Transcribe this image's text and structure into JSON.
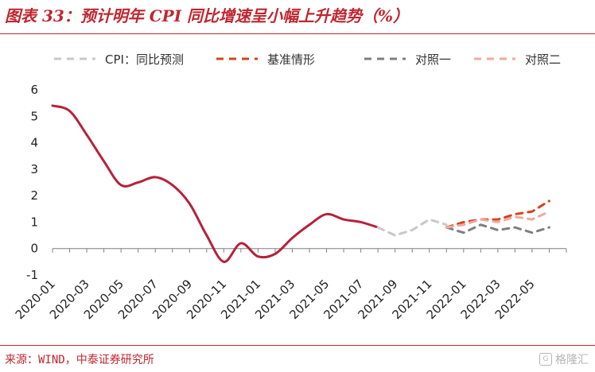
{
  "title": "图表 33：预计明年 CPI 同比增速呈小幅上升趋势（%）",
  "source": "来源：WIND，中泰证券研究所",
  "watermark": "格隆汇",
  "chart_data": {
    "type": "line",
    "title": "图表 33：预计明年 CPI 同比增速呈小幅上升趋势（%）",
    "xlabel": "",
    "ylabel": "",
    "ylim": [
      -1,
      6
    ],
    "yticks": [
      -1,
      0,
      1,
      2,
      3,
      4,
      5,
      6
    ],
    "grid": false,
    "legend_position": "top",
    "x_tick_labels": [
      "2020-01",
      "2020-03",
      "2020-05",
      "2020-07",
      "2020-09",
      "2020-11",
      "2021-01",
      "2021-03",
      "2021-05",
      "2021-07",
      "2021-09",
      "2021-11",
      "2022-01",
      "2022-03",
      "2022-05"
    ],
    "series": [
      {
        "name": "CPI",
        "style": "solid",
        "color": "#b5223a",
        "x": [
          "2020-01",
          "2020-02",
          "2020-03",
          "2020-04",
          "2020-05",
          "2020-06",
          "2020-07",
          "2020-08",
          "2020-09",
          "2020-10",
          "2020-11",
          "2020-12",
          "2021-01",
          "2021-02",
          "2021-03",
          "2021-04",
          "2021-05",
          "2021-06",
          "2021-07",
          "2021-08"
        ],
        "y": [
          5.4,
          5.2,
          4.3,
          3.3,
          2.4,
          2.5,
          2.7,
          2.4,
          1.7,
          0.5,
          -0.5,
          0.2,
          -0.3,
          -0.2,
          0.4,
          0.9,
          1.3,
          1.1,
          1.0,
          0.8
        ]
      },
      {
        "name": "CPI：同比预测",
        "style": "dashed",
        "color": "#c8c8c8",
        "x": [
          "2021-08",
          "2021-09",
          "2021-10",
          "2021-11",
          "2021-12"
        ],
        "y": [
          0.8,
          0.5,
          0.7,
          1.1,
          0.9
        ]
      },
      {
        "name": "基准情形",
        "style": "dashed",
        "color": "#d2451e",
        "x": [
          "2021-12",
          "2022-01",
          "2022-02",
          "2022-03",
          "2022-04",
          "2022-05",
          "2022-06"
        ],
        "y": [
          0.8,
          1.0,
          1.1,
          1.1,
          1.3,
          1.4,
          1.8
        ]
      },
      {
        "name": "对照一",
        "style": "dashed",
        "color": "#7f7f7f",
        "x": [
          "2021-12",
          "2022-01",
          "2022-02",
          "2022-03",
          "2022-04",
          "2022-05",
          "2022-06"
        ],
        "y": [
          0.8,
          0.6,
          0.9,
          0.7,
          0.8,
          0.6,
          0.8
        ]
      },
      {
        "name": "对照二",
        "style": "dashed",
        "color": "#f2a8a0",
        "x": [
          "2021-12",
          "2022-01",
          "2022-02",
          "2022-03",
          "2022-04",
          "2022-05",
          "2022-06"
        ],
        "y": [
          0.8,
          0.9,
          1.1,
          1.0,
          1.2,
          1.1,
          1.4
        ]
      }
    ],
    "legend": [
      {
        "label": "CPI：同比预测",
        "color": "#c8c8c8"
      },
      {
        "label": "基准情形",
        "color": "#d2451e"
      },
      {
        "label": "对照一",
        "color": "#7f7f7f"
      },
      {
        "label": "对照二",
        "color": "#f2a8a0"
      }
    ]
  }
}
